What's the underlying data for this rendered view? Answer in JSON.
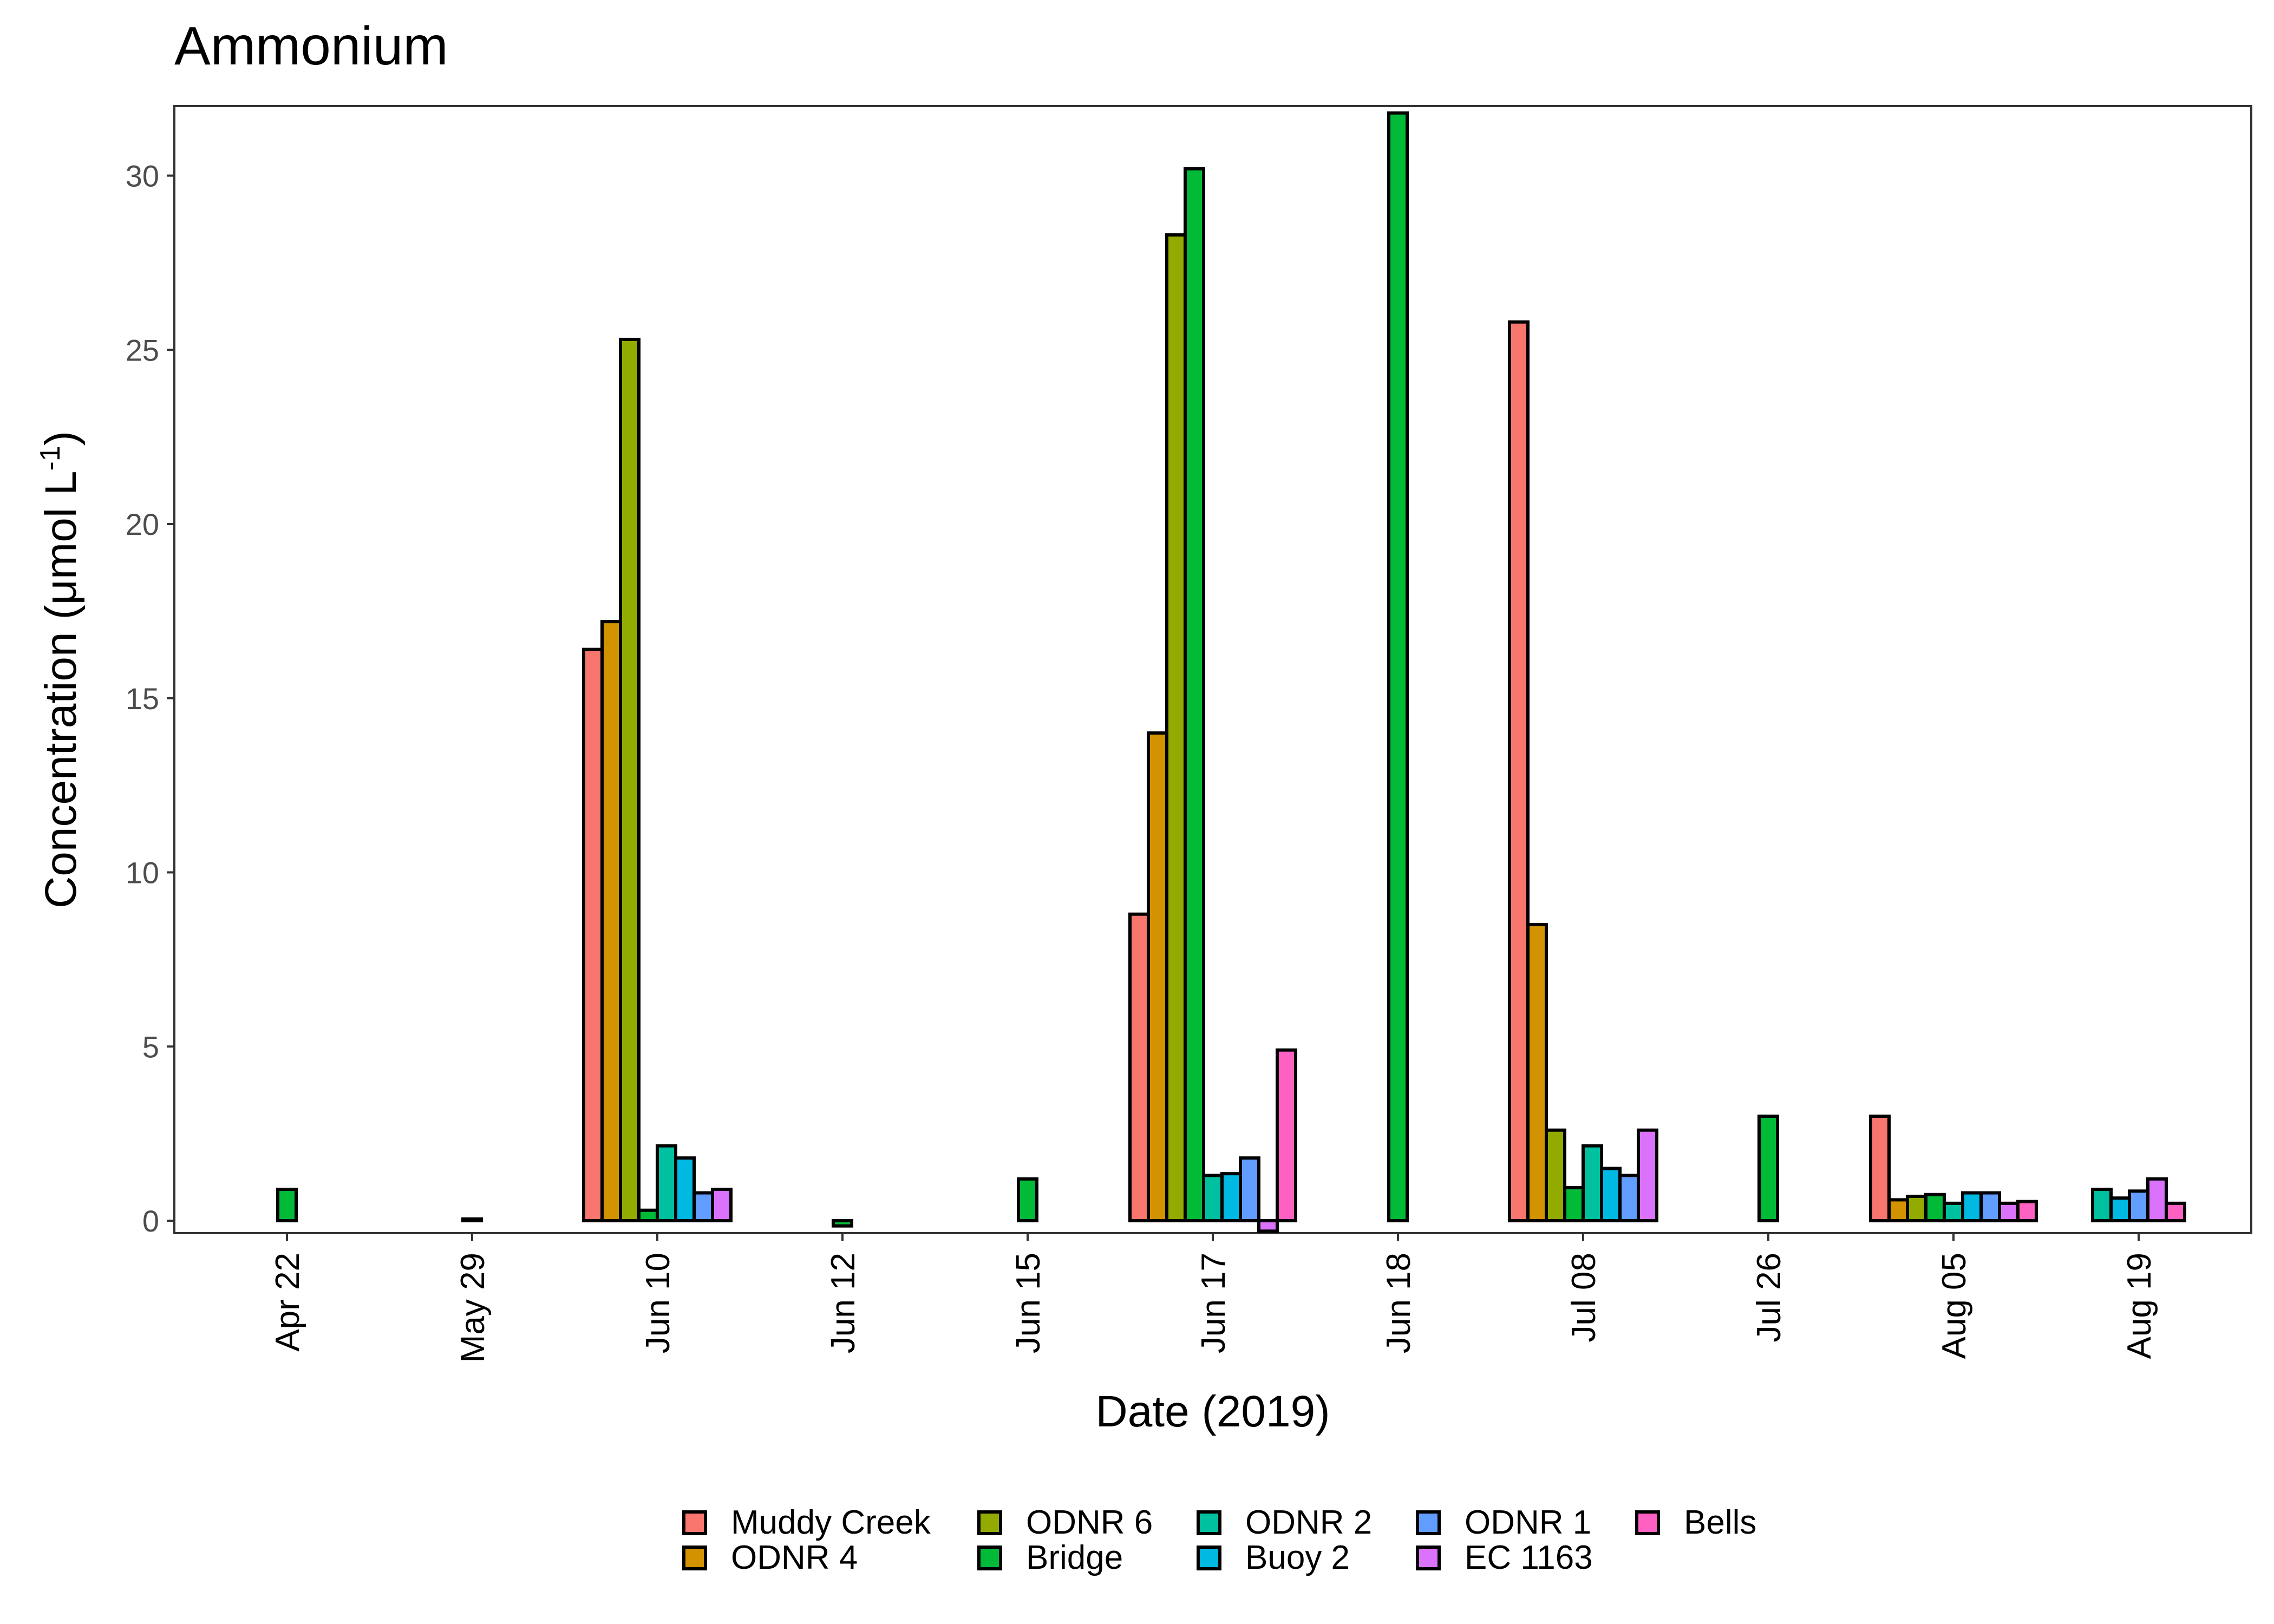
{
  "chart_data": {
    "type": "bar",
    "title": "Ammonium",
    "xlabel": "Date (2019)",
    "ylabel": "Concentration (μmol L-1)",
    "ylabel_parts": {
      "main": "Concentration (μmol L",
      "sup": "-1",
      "close": ")"
    },
    "ylim": [
      -0.3,
      32
    ],
    "yticks": [
      0,
      5,
      10,
      15,
      20,
      25,
      30
    ],
    "grid": false,
    "legend_position": "bottom",
    "categories": [
      "Apr 22",
      "May 29",
      "Jun 10",
      "Jun 12",
      "Jun 15",
      "Jun 17",
      "Jun 18",
      "Jul 08",
      "Jul 26",
      "Aug 05",
      "Aug 19"
    ],
    "series": [
      {
        "name": "Muddy Creek",
        "color": "#F8766D",
        "values": [
          null,
          null,
          16.4,
          null,
          null,
          8.8,
          null,
          25.8,
          null,
          3.0,
          null
        ]
      },
      {
        "name": "ODNR 4",
        "color": "#D39200",
        "values": [
          null,
          null,
          17.2,
          null,
          null,
          14.0,
          null,
          8.5,
          null,
          0.6,
          null
        ]
      },
      {
        "name": "ODNR 6",
        "color": "#93AA00",
        "values": [
          null,
          null,
          25.3,
          null,
          null,
          28.3,
          null,
          2.6,
          null,
          0.7,
          null
        ]
      },
      {
        "name": "Bridge",
        "color": "#00BA38",
        "values": [
          0.9,
          0.05,
          0.3,
          -0.15,
          1.2,
          30.2,
          31.8,
          0.95,
          3.0,
          0.75,
          null
        ]
      },
      {
        "name": "ODNR 2",
        "color": "#00C19F",
        "values": [
          null,
          null,
          2.15,
          null,
          null,
          1.3,
          null,
          2.15,
          null,
          0.5,
          0.9
        ]
      },
      {
        "name": "Buoy 2",
        "color": "#00B9E3",
        "values": [
          null,
          null,
          1.8,
          null,
          null,
          1.35,
          null,
          1.5,
          null,
          0.8,
          0.65
        ]
      },
      {
        "name": "ODNR 1",
        "color": "#619CFF",
        "values": [
          null,
          null,
          0.8,
          null,
          null,
          1.8,
          null,
          1.3,
          null,
          0.8,
          0.85
        ]
      },
      {
        "name": "EC 1163",
        "color": "#DB72FB",
        "values": [
          null,
          null,
          0.9,
          null,
          null,
          -0.3,
          null,
          2.6,
          null,
          0.5,
          1.2
        ]
      },
      {
        "name": "Bells",
        "color": "#FF61C3",
        "values": [
          null,
          null,
          null,
          null,
          null,
          4.9,
          null,
          null,
          null,
          0.55,
          0.5
        ]
      }
    ]
  }
}
